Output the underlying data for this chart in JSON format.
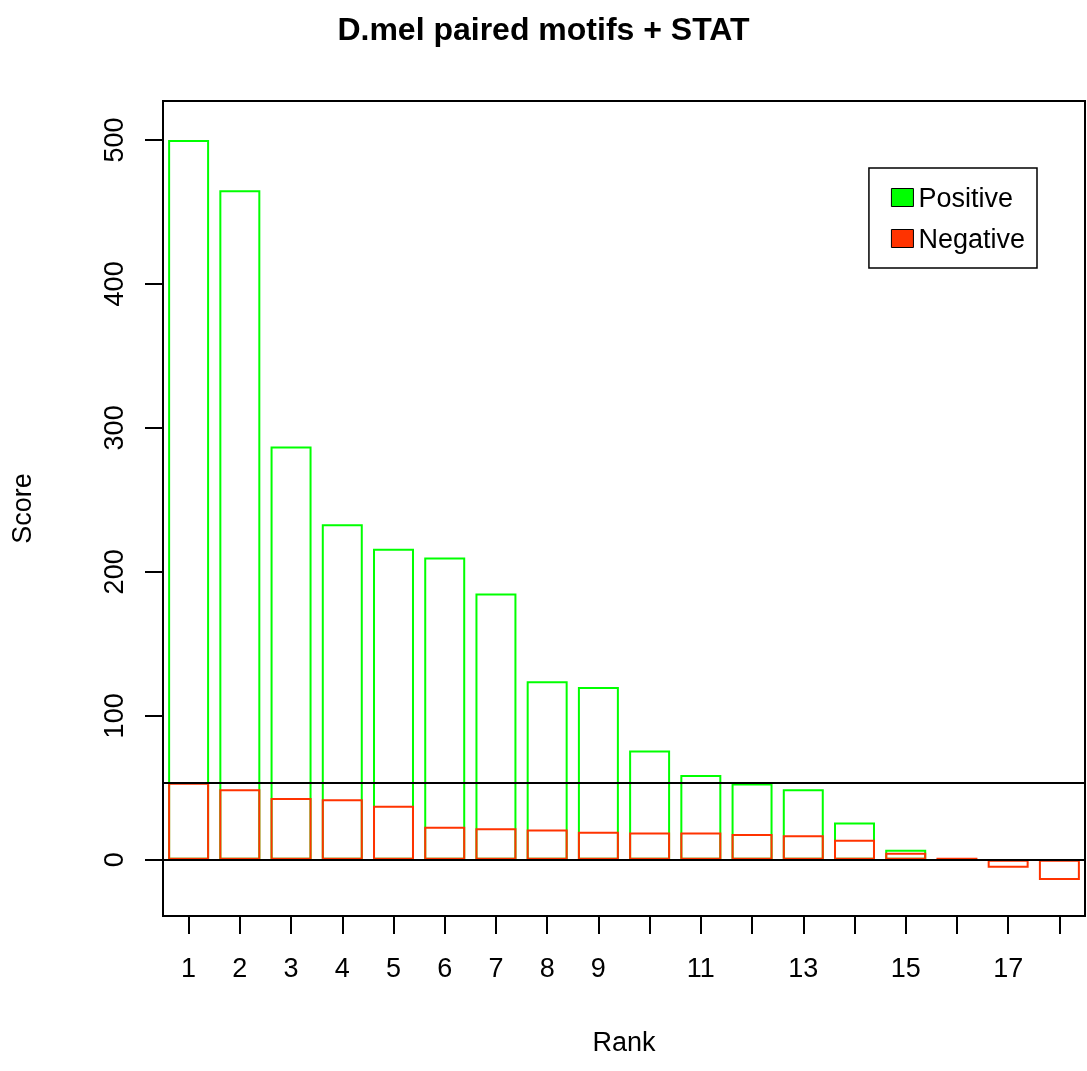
{
  "chart_data": {
    "type": "bar",
    "title": "D.mel paired motifs + STAT",
    "xlabel": "Rank",
    "ylabel": "Score",
    "categories": [
      "1",
      "2",
      "3",
      "4",
      "5",
      "6",
      "7",
      "8",
      "9",
      null,
      "11",
      null,
      "13",
      null,
      "15",
      null,
      "17",
      null
    ],
    "series": [
      {
        "name": "Positive",
        "color": "#00ff00",
        "values": [
          500,
          465,
          287,
          233,
          216,
          210,
          185,
          124,
          120,
          76,
          59,
          53,
          49,
          26,
          7,
          null,
          null,
          null
        ]
      },
      {
        "name": "Negative",
        "color": "#ff3300",
        "values": [
          53.5,
          49,
          43,
          42,
          37.5,
          23,
          22,
          21,
          19.5,
          19,
          19,
          18,
          17,
          14,
          5,
          1.5,
          -5.5,
          -14
        ]
      }
    ],
    "ylim": [
      -39,
      527
    ],
    "yticks": [
      0,
      100,
      200,
      300,
      400,
      500
    ],
    "ref_lines": [
      {
        "axis": "y",
        "value": 0,
        "color": "#000000"
      },
      {
        "axis": "y",
        "value": 53.5,
        "color": "#000000"
      }
    ],
    "legend": "top right",
    "grid": false
  }
}
